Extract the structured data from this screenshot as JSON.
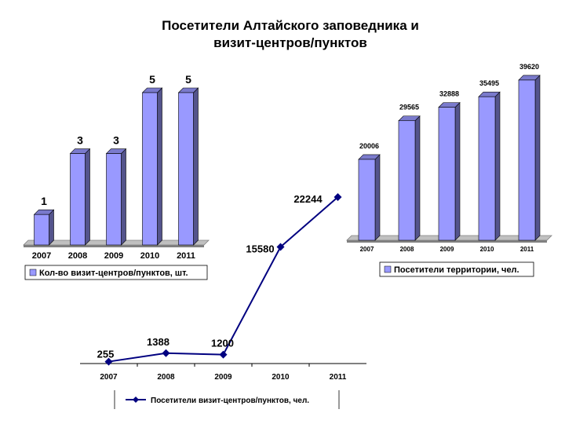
{
  "title_line1": "Посетители Алтайского заповедника и",
  "title_line2": "визит-центров/пунктов",
  "chart_data": [
    {
      "id": "centers",
      "type": "bar",
      "categories": [
        "2007",
        "2008",
        "2009",
        "2010",
        "2011"
      ],
      "series": [
        {
          "name": "Кол-во визит-центров/пунктов, шт.",
          "values": [
            1,
            3,
            3,
            5,
            5
          ],
          "color": "#9999ff"
        }
      ],
      "ylim": [
        0,
        5
      ],
      "legend": "bottom",
      "data_labels": true,
      "grid": false
    },
    {
      "id": "territory",
      "type": "bar",
      "categories": [
        "2007",
        "2008",
        "2009",
        "2010",
        "2011"
      ],
      "series": [
        {
          "name": "Посетители территории, чел.",
          "values": [
            20006,
            29565,
            32888,
            35495,
            39620
          ],
          "color": "#9999ff"
        }
      ],
      "ylim": [
        0,
        40000
      ],
      "legend": "bottom",
      "data_labels": true,
      "grid": false
    },
    {
      "id": "visitors",
      "type": "line",
      "categories": [
        "2007",
        "2008",
        "2009",
        "2010",
        "2011"
      ],
      "series": [
        {
          "name": "Посетители визит-центров/пунктов, чел.",
          "values": [
            255,
            1388,
            1200,
            15580,
            22244
          ],
          "color": "#000080"
        }
      ],
      "ylim": [
        0,
        22244
      ],
      "legend": "bottom",
      "data_labels": true,
      "grid": false
    }
  ]
}
